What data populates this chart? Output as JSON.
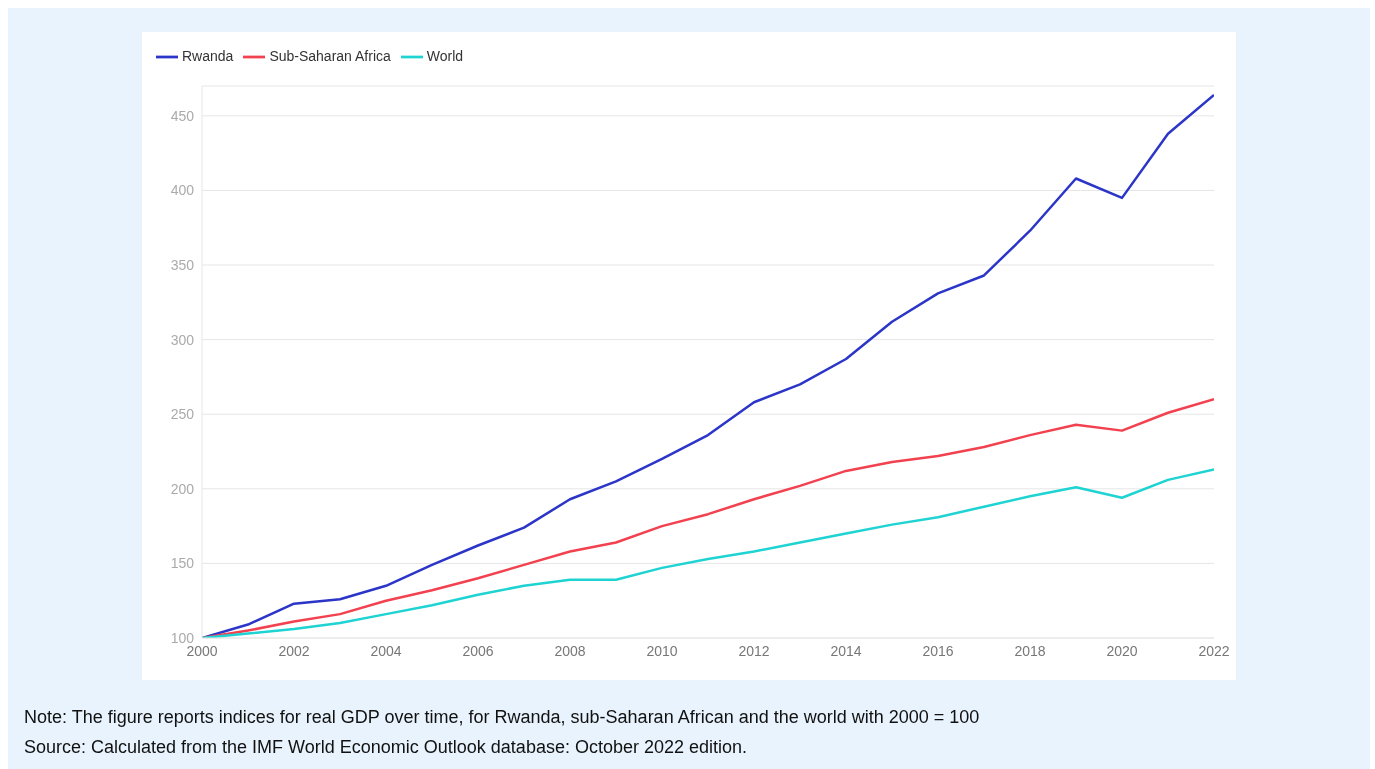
{
  "chart_data": {
    "type": "line",
    "x": [
      2000,
      2001,
      2002,
      2003,
      2004,
      2005,
      2006,
      2007,
      2008,
      2009,
      2010,
      2011,
      2012,
      2013,
      2014,
      2015,
      2016,
      2017,
      2018,
      2019,
      2020,
      2021,
      2022
    ],
    "series": [
      {
        "name": "Rwanda",
        "color": "#2b35c8",
        "values": [
          100,
          109,
          123,
          126,
          135,
          149,
          162,
          174,
          193,
          205,
          220,
          236,
          258,
          270,
          287,
          312,
          331,
          343,
          373,
          408,
          395,
          438,
          464
        ]
      },
      {
        "name": "Sub-Saharan Africa",
        "color": "#f2414f",
        "values": [
          100,
          105,
          111,
          116,
          125,
          132,
          140,
          149,
          158,
          164,
          175,
          183,
          193,
          202,
          212,
          218,
          222,
          228,
          236,
          243,
          239,
          251,
          260
        ]
      },
      {
        "name": "World",
        "color": "#1fd3d3",
        "values": [
          100,
          103,
          106,
          110,
          116,
          122,
          129,
          135,
          139,
          139,
          147,
          153,
          158,
          164,
          170,
          176,
          181,
          188,
          195,
          201,
          194,
          206,
          213
        ]
      }
    ],
    "xlim": [
      2000,
      2022
    ],
    "xticks": [
      2000,
      2002,
      2004,
      2006,
      2008,
      2010,
      2012,
      2014,
      2016,
      2018,
      2020,
      2022
    ],
    "ylim": [
      100,
      470
    ],
    "yticks": [
      100,
      150,
      200,
      250,
      300,
      350,
      400,
      450
    ],
    "grid": "y",
    "legend": "top left",
    "marker": "none",
    "line_style": "solid",
    "annotations": [
      "Note: The figure reports indices for real GDP over time, for Rwanda, sub-Saharan African and the world with 2000 = 100",
      "Source: Calculated from the IMF World Economic Outlook database: October 2022 edition."
    ]
  }
}
